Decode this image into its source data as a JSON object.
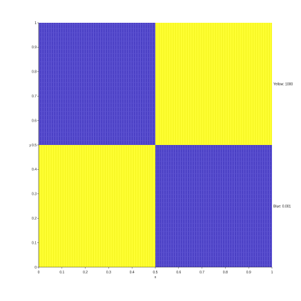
{
  "chart_data": {
    "type": "heatmap",
    "title": "",
    "xlabel": "x",
    "ylabel": "y",
    "xlim": [
      0,
      1
    ],
    "ylim": [
      0,
      1
    ],
    "x_ticks": [
      "0",
      "0.1",
      "0.2",
      "0.3",
      "0.4",
      "0.5",
      "0.6",
      "0.7",
      "0.8",
      "0.9",
      "1"
    ],
    "y_ticks": [
      "0",
      "0.1",
      "0.2",
      "0.3",
      "0.4",
      "0.5",
      "0.6",
      "0.7",
      "0.8",
      "0.9",
      "1"
    ],
    "grid": false,
    "colors": {
      "yellow": "#ffff33",
      "blue": "#4a3fc4"
    },
    "cells": [
      {
        "x": [
          0,
          0.5
        ],
        "y": [
          0.5,
          1
        ],
        "color": "blue",
        "value": 0.001
      },
      {
        "x": [
          0.5,
          1
        ],
        "y": [
          0.5,
          1
        ],
        "color": "yellow",
        "value": 1000
      },
      {
        "x": [
          0,
          0.5
        ],
        "y": [
          0,
          0.5
        ],
        "color": "yellow",
        "value": 1000
      },
      {
        "x": [
          0.5,
          1
        ],
        "y": [
          0,
          0.5
        ],
        "color": "blue",
        "value": 0.001
      }
    ],
    "annotations": [
      {
        "text": "Yellow: 1000",
        "x": 1,
        "y": 0.75
      },
      {
        "text": "Blue: 0.001",
        "x": 1,
        "y": 0.25
      }
    ]
  }
}
